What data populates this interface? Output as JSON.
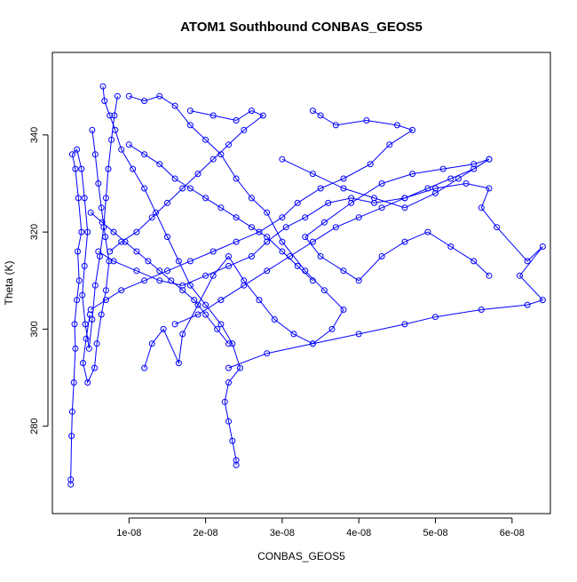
{
  "chart_data": {
    "type": "line",
    "title": "ATOM1 Southbound CONBAS_GEOS5",
    "xlabel": "CONBAS_GEOS5",
    "ylabel": "Theta (K)",
    "xlim": [
      0,
      6.5e-08
    ],
    "ylim": [
      262,
      357
    ],
    "x_ticks": [
      1e-08,
      2e-08,
      3e-08,
      4e-08,
      5e-08,
      6e-08
    ],
    "x_tick_labels": [
      "1e-08",
      "2e-08",
      "3e-08",
      "4e-08",
      "5e-08",
      "6e-08"
    ],
    "y_ticks": [
      280,
      300,
      320,
      340
    ],
    "y_tick_labels": [
      "280",
      "300",
      "320",
      "340"
    ],
    "grid": false,
    "legend": "none",
    "color": "#0000ff",
    "marker": "open-circle",
    "series": [
      {
        "values": [
          [
            2.4e-09,
            268
          ],
          [
            2.4e-09,
            269
          ],
          [
            2.5e-09,
            278
          ],
          [
            2.6e-09,
            283
          ],
          [
            2.8e-09,
            289
          ],
          [
            3e-09,
            296
          ],
          [
            2.9e-09,
            301
          ],
          [
            3.2e-09,
            306
          ],
          [
            3.5e-09,
            310
          ],
          [
            3.3e-09,
            316
          ],
          [
            3.8e-09,
            320
          ],
          [
            3.4e-09,
            327
          ],
          [
            3e-09,
            333
          ],
          [
            2.6e-09,
            336
          ],
          [
            3.2e-09,
            337
          ],
          [
            3.8e-09,
            333
          ],
          [
            4.2e-09,
            327
          ],
          [
            4.6e-09,
            320
          ],
          [
            4.2e-09,
            313
          ],
          [
            3.9e-09,
            307
          ],
          [
            4.3e-09,
            301
          ],
          [
            4.8e-09,
            296
          ],
          [
            5.2e-09,
            302
          ],
          [
            5.6e-09,
            309
          ],
          [
            6.2e-09,
            315
          ],
          [
            6.7e-09,
            321
          ],
          [
            7e-09,
            327
          ],
          [
            7.3e-09,
            333
          ],
          [
            7.7e-09,
            339
          ],
          [
            8.1e-09,
            344
          ],
          [
            8.5e-09,
            348
          ]
        ]
      },
      {
        "values": [
          [
            5.2e-09,
            341
          ],
          [
            5.6e-09,
            336
          ],
          [
            6e-09,
            330
          ],
          [
            6.4e-09,
            325
          ],
          [
            6.9e-09,
            319
          ],
          [
            7.4e-09,
            314
          ],
          [
            7e-09,
            308
          ],
          [
            6.4e-09,
            303
          ],
          [
            5.8e-09,
            297
          ],
          [
            5.5e-09,
            292
          ],
          [
            4.6e-09,
            289
          ],
          [
            4e-09,
            293
          ],
          [
            4.4e-09,
            298
          ],
          [
            4.9e-09,
            303
          ]
        ]
      },
      {
        "values": [
          [
            6.6e-09,
            350
          ],
          [
            6.8e-09,
            347
          ],
          [
            7.5e-09,
            344
          ],
          [
            8.2e-09,
            341
          ],
          [
            9e-09,
            337
          ],
          [
            1.05e-08,
            333
          ],
          [
            1.2e-08,
            329
          ],
          [
            1.35e-08,
            324
          ],
          [
            1.5e-08,
            319
          ],
          [
            1.65e-08,
            314
          ],
          [
            1.8e-08,
            309
          ],
          [
            2e-08,
            305
          ],
          [
            2.2e-08,
            301
          ],
          [
            2.35e-08,
            297
          ],
          [
            2.45e-08,
            292
          ],
          [
            2.3e-08,
            289
          ],
          [
            2.25e-08,
            285
          ],
          [
            2.3e-08,
            281
          ],
          [
            2.35e-08,
            277
          ],
          [
            2.4e-08,
            273
          ],
          [
            2.4e-08,
            272
          ]
        ]
      },
      {
        "values": [
          [
            1.2e-08,
            292
          ],
          [
            1.3e-08,
            297
          ],
          [
            1.45e-08,
            300
          ],
          [
            1.65e-08,
            293
          ],
          [
            1.7e-08,
            299
          ],
          [
            1.9e-08,
            305
          ],
          [
            2.1e-08,
            311
          ],
          [
            2.3e-08,
            315
          ],
          [
            2.5e-08,
            310
          ],
          [
            2.7e-08,
            306
          ],
          [
            2.9e-08,
            302
          ],
          [
            3.15e-08,
            299
          ],
          [
            3.4e-08,
            297
          ],
          [
            3.65e-08,
            300
          ],
          [
            3.8e-08,
            304
          ],
          [
            3.55e-08,
            308
          ],
          [
            3.3e-08,
            312
          ],
          [
            3e-08,
            318
          ],
          [
            2.8e-08,
            324
          ],
          [
            2.6e-08,
            327
          ],
          [
            2.4e-08,
            331
          ],
          [
            2.2e-08,
            336
          ],
          [
            2e-08,
            339
          ],
          [
            1.8e-08,
            342
          ],
          [
            1.6e-08,
            346
          ],
          [
            1.4e-08,
            348
          ],
          [
            1.2e-08,
            347
          ],
          [
            1e-08,
            348
          ]
        ]
      },
      {
        "values": [
          [
            2.3e-08,
            292
          ],
          [
            2.8e-08,
            295
          ],
          [
            3.4e-08,
            297
          ],
          [
            4e-08,
            299
          ],
          [
            4.6e-08,
            301
          ],
          [
            5e-08,
            302.5
          ],
          [
            5.6e-08,
            304
          ],
          [
            6.2e-08,
            305
          ],
          [
            6.4e-08,
            306
          ],
          [
            6.1e-08,
            311
          ],
          [
            6.4e-08,
            317
          ],
          [
            6.2e-08,
            314
          ],
          [
            5.8e-08,
            321
          ],
          [
            5.6e-08,
            325
          ],
          [
            5.7e-08,
            329
          ],
          [
            5.4e-08,
            330
          ],
          [
            5e-08,
            329
          ],
          [
            4.6e-08,
            327
          ],
          [
            4.2e-08,
            326
          ],
          [
            3.9e-08,
            327
          ],
          [
            3.6e-08,
            326
          ],
          [
            3.3e-08,
            323
          ],
          [
            3.05e-08,
            321
          ],
          [
            2.8e-08,
            318
          ],
          [
            2.6e-08,
            315
          ],
          [
            2.3e-08,
            313
          ],
          [
            2e-08,
            311
          ],
          [
            1.7e-08,
            309
          ],
          [
            1.4e-08,
            310
          ],
          [
            1.1e-08,
            312
          ],
          [
            8e-09,
            314
          ],
          [
            6e-09,
            316
          ]
        ]
      },
      {
        "values": [
          [
            3.4e-08,
            345
          ],
          [
            3.5e-08,
            344
          ],
          [
            3.7e-08,
            342
          ],
          [
            4.1e-08,
            343
          ],
          [
            4.5e-08,
            342
          ],
          [
            4.7e-08,
            341
          ],
          [
            4.4e-08,
            338
          ],
          [
            4.15e-08,
            334
          ],
          [
            3.8e-08,
            331
          ],
          [
            3.5e-08,
            329
          ],
          [
            3.2e-08,
            326
          ],
          [
            3e-08,
            323
          ],
          [
            2.7e-08,
            320
          ],
          [
            2.4e-08,
            318
          ],
          [
            2.1e-08,
            316
          ],
          [
            1.8e-08,
            314
          ],
          [
            1.5e-08,
            312
          ],
          [
            1.2e-08,
            310
          ],
          [
            9e-09,
            308
          ],
          [
            7e-09,
            306
          ],
          [
            5e-09,
            304
          ]
        ]
      },
      {
        "values": [
          [
            1.8e-08,
            345
          ],
          [
            2.1e-08,
            344
          ],
          [
            2.4e-08,
            343
          ],
          [
            2.6e-08,
            345
          ],
          [
            2.75e-08,
            344
          ],
          [
            2.5e-08,
            341
          ],
          [
            2.3e-08,
            338
          ],
          [
            2.1e-08,
            335
          ],
          [
            1.9e-08,
            332
          ],
          [
            1.7e-08,
            329
          ],
          [
            1.5e-08,
            326
          ],
          [
            1.3e-08,
            323
          ],
          [
            1.1e-08,
            320
          ],
          [
            9e-09,
            318
          ],
          [
            7.5e-09,
            316
          ]
        ]
      },
      {
        "values": [
          [
            3e-08,
            335
          ],
          [
            3.4e-08,
            332
          ],
          [
            3.8e-08,
            329
          ],
          [
            4.2e-08,
            327
          ],
          [
            4.6e-08,
            325
          ],
          [
            5e-08,
            328
          ],
          [
            5.3e-08,
            331
          ],
          [
            5.7e-08,
            335
          ],
          [
            5.5e-08,
            334
          ],
          [
            5.1e-08,
            333
          ],
          [
            4.7e-08,
            332
          ],
          [
            4.3e-08,
            330
          ],
          [
            3.9e-08,
            326
          ],
          [
            3.55e-08,
            322
          ],
          [
            3.3e-08,
            319
          ],
          [
            3.5e-08,
            315
          ],
          [
            3.8e-08,
            312
          ],
          [
            4e-08,
            310
          ],
          [
            4.3e-08,
            315
          ],
          [
            4.6e-08,
            318
          ],
          [
            4.9e-08,
            320
          ],
          [
            5.2e-08,
            317
          ],
          [
            5.5e-08,
            314
          ],
          [
            5.7e-08,
            311
          ]
        ]
      },
      {
        "values": [
          [
            1.6e-08,
            301
          ],
          [
            1.9e-08,
            303
          ],
          [
            2.2e-08,
            306
          ],
          [
            2.5e-08,
            309
          ],
          [
            2.8e-08,
            312
          ],
          [
            3.1e-08,
            315
          ],
          [
            3.4e-08,
            318
          ],
          [
            3.7e-08,
            321
          ],
          [
            4e-08,
            323
          ],
          [
            4.3e-08,
            325
          ],
          [
            4.6e-08,
            327
          ],
          [
            4.9e-08,
            329
          ],
          [
            5.2e-08,
            331
          ],
          [
            5.5e-08,
            333
          ],
          [
            5.7e-08,
            335
          ]
        ]
      },
      {
        "values": [
          [
            1e-08,
            338
          ],
          [
            1.2e-08,
            336
          ],
          [
            1.4e-08,
            334
          ],
          [
            1.6e-08,
            331
          ],
          [
            1.8e-08,
            329
          ],
          [
            2e-08,
            327
          ],
          [
            2.2e-08,
            325
          ],
          [
            2.4e-08,
            323
          ],
          [
            2.6e-08,
            321
          ],
          [
            2.8e-08,
            319
          ],
          [
            3e-08,
            316
          ],
          [
            3.2e-08,
            313
          ],
          [
            3.4e-08,
            310
          ]
        ]
      },
      {
        "values": [
          [
            5e-09,
            324
          ],
          [
            6.5e-09,
            322
          ],
          [
            8e-09,
            320
          ],
          [
            9.5e-09,
            318
          ],
          [
            1.1e-08,
            316
          ],
          [
            1.25e-08,
            314
          ],
          [
            1.4e-08,
            312
          ],
          [
            1.55e-08,
            310
          ],
          [
            1.7e-08,
            308
          ],
          [
            1.85e-08,
            306
          ],
          [
            2e-08,
            303
          ],
          [
            2.15e-08,
            300
          ],
          [
            2.3e-08,
            297
          ]
        ]
      }
    ]
  }
}
